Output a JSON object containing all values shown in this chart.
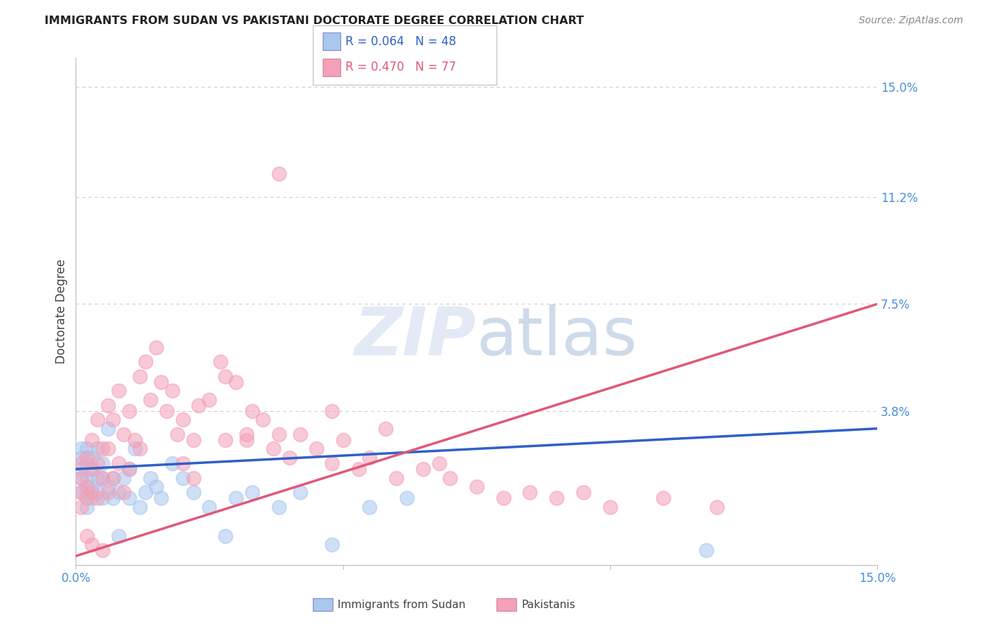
{
  "title": "IMMIGRANTS FROM SUDAN VS PAKISTANI DOCTORATE DEGREE CORRELATION CHART",
  "source": "Source: ZipAtlas.com",
  "ylabel": "Doctorate Degree",
  "xlim": [
    0.0,
    0.15
  ],
  "ylim": [
    -0.015,
    0.16
  ],
  "ytick_labels_right": [
    "15.0%",
    "11.2%",
    "7.5%",
    "3.8%"
  ],
  "ytick_values_right": [
    0.15,
    0.112,
    0.075,
    0.038
  ],
  "watermark": "ZIPatlas",
  "legend_r1": "R = 0.064",
  "legend_n1": "N = 48",
  "legend_r2": "R = 0.470",
  "legend_n2": "N = 77",
  "color_blue": "#A8C8F0",
  "color_pink": "#F4A0B8",
  "line_color_blue": "#3060C8",
  "line_color_pink": "#E05878",
  "background_color": "#FFFFFF",
  "grid_color": "#CCCCCC",
  "title_color": "#222222",
  "axis_label_color": "#444444",
  "right_tick_color": "#4A90D9",
  "xtick_color": "#4A90D9",
  "sudan_x": [
    0.001,
    0.001,
    0.001,
    0.001,
    0.001,
    0.002,
    0.002,
    0.002,
    0.002,
    0.002,
    0.003,
    0.003,
    0.003,
    0.003,
    0.004,
    0.004,
    0.004,
    0.005,
    0.005,
    0.005,
    0.006,
    0.006,
    0.007,
    0.007,
    0.008,
    0.008,
    0.009,
    0.01,
    0.01,
    0.011,
    0.012,
    0.013,
    0.014,
    0.015,
    0.016,
    0.018,
    0.02,
    0.022,
    0.025,
    0.028,
    0.03,
    0.033,
    0.038,
    0.042,
    0.048,
    0.055,
    0.062,
    0.118
  ],
  "sudan_y": [
    0.018,
    0.022,
    0.025,
    0.01,
    0.015,
    0.02,
    0.025,
    0.015,
    0.01,
    0.005,
    0.022,
    0.018,
    0.012,
    0.008,
    0.025,
    0.015,
    0.01,
    0.02,
    0.015,
    0.008,
    0.032,
    0.012,
    0.015,
    0.008,
    0.01,
    -0.005,
    0.015,
    0.018,
    0.008,
    0.025,
    0.005,
    0.01,
    0.015,
    0.012,
    0.008,
    0.02,
    0.015,
    0.01,
    0.005,
    -0.005,
    0.008,
    0.01,
    0.005,
    0.01,
    -0.008,
    0.005,
    0.008,
    -0.01
  ],
  "pak_x": [
    0.001,
    0.001,
    0.001,
    0.001,
    0.002,
    0.002,
    0.002,
    0.002,
    0.003,
    0.003,
    0.003,
    0.003,
    0.004,
    0.004,
    0.004,
    0.005,
    0.005,
    0.005,
    0.006,
    0.006,
    0.006,
    0.007,
    0.007,
    0.008,
    0.008,
    0.009,
    0.009,
    0.01,
    0.01,
    0.011,
    0.012,
    0.013,
    0.014,
    0.015,
    0.016,
    0.017,
    0.018,
    0.019,
    0.02,
    0.022,
    0.023,
    0.025,
    0.027,
    0.028,
    0.03,
    0.032,
    0.033,
    0.035,
    0.037,
    0.038,
    0.04,
    0.042,
    0.045,
    0.048,
    0.05,
    0.053,
    0.055,
    0.058,
    0.06,
    0.065,
    0.068,
    0.07,
    0.075,
    0.08,
    0.085,
    0.09,
    0.095,
    0.1,
    0.11,
    0.12,
    0.038,
    0.048,
    0.028,
    0.02,
    0.012,
    0.022,
    0.032
  ],
  "pak_y": [
    0.015,
    0.02,
    0.01,
    0.005,
    0.022,
    0.012,
    0.008,
    -0.005,
    0.028,
    0.018,
    0.01,
    -0.008,
    0.035,
    0.02,
    0.008,
    0.025,
    0.015,
    -0.01,
    0.04,
    0.025,
    0.01,
    0.035,
    0.015,
    0.045,
    0.02,
    0.03,
    0.01,
    0.038,
    0.018,
    0.028,
    0.05,
    0.055,
    0.042,
    0.06,
    0.048,
    0.038,
    0.045,
    0.03,
    0.035,
    0.028,
    0.04,
    0.042,
    0.055,
    0.05,
    0.048,
    0.028,
    0.038,
    0.035,
    0.025,
    0.03,
    0.022,
    0.03,
    0.025,
    0.02,
    0.028,
    0.018,
    0.022,
    0.032,
    0.015,
    0.018,
    0.02,
    0.015,
    0.012,
    0.008,
    0.01,
    0.008,
    0.01,
    0.005,
    0.008,
    0.005,
    0.12,
    0.038,
    0.028,
    0.02,
    0.025,
    0.015,
    0.03
  ]
}
